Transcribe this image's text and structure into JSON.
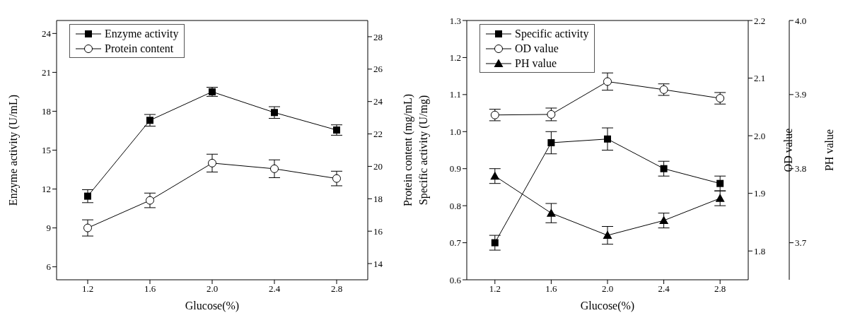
{
  "chart_data": [
    {
      "type": "line",
      "xlabel": "Glucose(%)",
      "ylabel": "Enzyme activity (U/mL)",
      "y2label": "Protein content (mg/mL)",
      "x": [
        1.2,
        1.6,
        2.0,
        2.4,
        2.8
      ],
      "xlim": [
        1.0,
        3.0
      ],
      "xticks": [
        1.2,
        1.6,
        {
          "value": 2,
          "label": "2.0"
        },
        2.4,
        2.8
      ],
      "ylim": [
        5,
        25
      ],
      "yticks": [
        6,
        9,
        12,
        15,
        18,
        21,
        24
      ],
      "y2lim": [
        13,
        29
      ],
      "y2ticks": [
        14,
        16,
        18,
        20,
        22,
        24,
        26,
        28
      ],
      "legend": "top left",
      "line_style": "solid",
      "series": [
        {
          "name": "Enzyme activity",
          "color": "#000000",
          "marker": "square",
          "values": [
            11.45,
            17.3,
            19.5,
            17.9,
            16.55
          ],
          "errors": [
            0.5,
            0.45,
            0.35,
            0.45,
            0.4
          ]
        },
        {
          "name": "Protein content",
          "color": "#000000",
          "marker": "circle",
          "axis": "y2",
          "values": [
            16.2,
            17.9,
            20.2,
            19.85,
            19.25
          ],
          "errors": [
            0.5,
            0.45,
            0.55,
            0.55,
            0.45
          ]
        }
      ]
    },
    {
      "type": "line",
      "xlabel": "Glucose(%)",
      "ylabel": "Specific activity (U/mg)",
      "y2label": "OD value",
      "y3label": "PH value",
      "x": [
        1.2,
        1.6,
        2.0,
        2.4,
        2.8
      ],
      "xlim": [
        1.0,
        3.0
      ],
      "xticks": [
        1.2,
        1.6,
        {
          "value": 2,
          "label": "2.0"
        },
        2.4,
        2.8
      ],
      "ylim": [
        0.6,
        1.3
      ],
      "yticks": [
        0.6,
        0.7,
        0.8,
        0.9,
        {
          "value": 1,
          "label": "1.0"
        },
        1.1,
        1.2,
        1.3
      ],
      "y2lim": [
        1.75,
        2.2
      ],
      "y2ticks": [
        1.8,
        1.9,
        {
          "value": 2,
          "label": "2.0"
        },
        2.1,
        2.2
      ],
      "y3lim": [
        3.65,
        4.0
      ],
      "y3ticks": [
        3.7,
        3.8,
        3.9,
        {
          "value": 4,
          "label": "4.0"
        }
      ],
      "legend": "top left",
      "line_style": "solid",
      "series": [
        {
          "name": "Specific activity",
          "color": "#000000",
          "marker": "square",
          "values": [
            0.7,
            0.97,
            0.98,
            0.9,
            0.86
          ],
          "errors": [
            0.02,
            0.03,
            0.03,
            0.02,
            0.02
          ]
        },
        {
          "name": "OD value",
          "color": "#000000",
          "marker": "circle",
          "axis": "y2",
          "values": [
            2.036,
            2.037,
            2.094,
            2.08,
            2.065
          ],
          "errors": [
            0.01,
            0.011,
            0.015,
            0.01,
            0.01
          ]
        },
        {
          "name": "PH value",
          "color": "#000000",
          "marker": "triangle",
          "axis": "y3",
          "values": [
            3.79,
            3.74,
            3.71,
            3.73,
            3.76
          ],
          "errors": [
            0.01,
            0.013,
            0.012,
            0.01,
            0.01
          ]
        }
      ]
    }
  ]
}
